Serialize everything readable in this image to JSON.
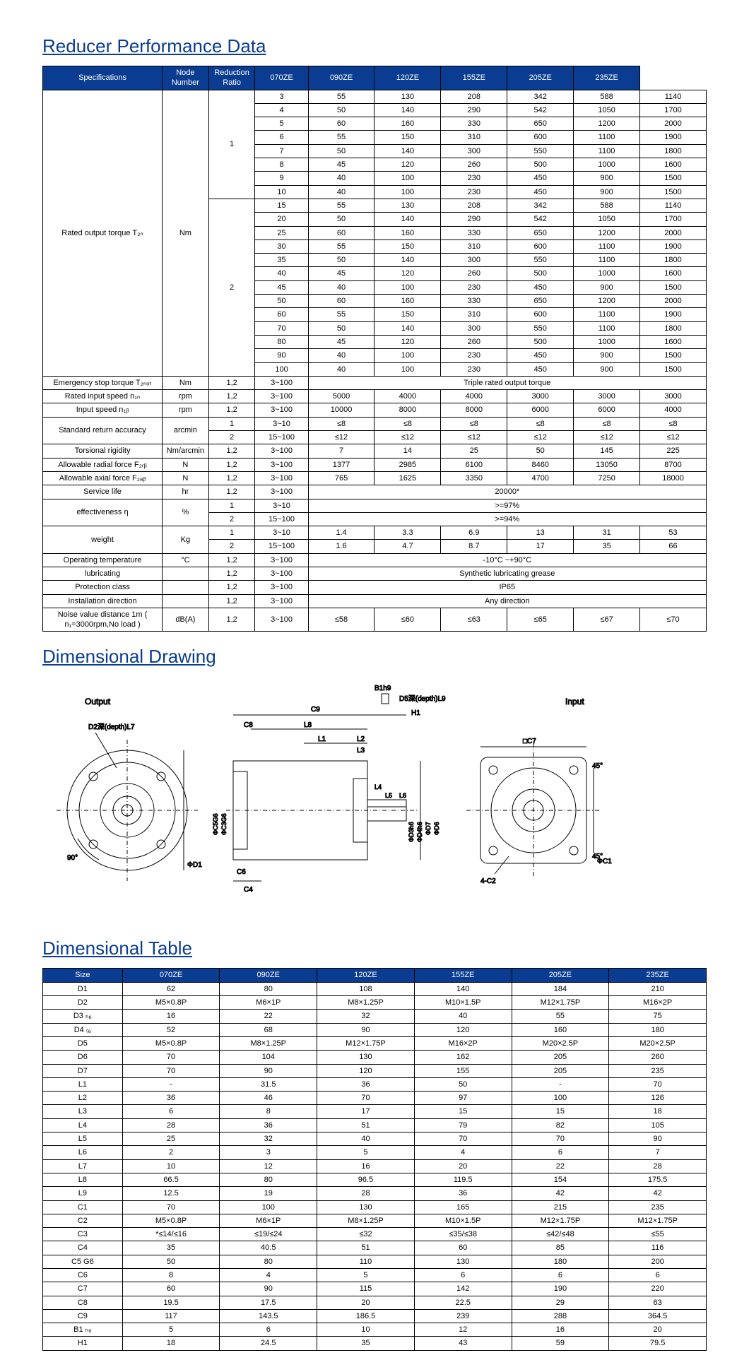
{
  "sections": {
    "perf_title": "Reducer Performance Data",
    "drawing_title": "Dimensional Drawing",
    "dim_title": "Dimensional Table"
  },
  "perf_table": {
    "headers": {
      "spec": "Specifications",
      "node": "Node Number",
      "ratio": "Reduction Ratio",
      "models": [
        "070ZE",
        "090ZE",
        "120ZE",
        "155ZE",
        "205ZE",
        "235ZE"
      ]
    },
    "torque_label": "Rated output torque T₂ₙ",
    "torque_unit": "Nm",
    "torque_stage1": "1",
    "torque_stage2": "2",
    "torque_rows_1": [
      [
        "3",
        "55",
        "130",
        "208",
        "342",
        "588",
        "1140"
      ],
      [
        "4",
        "50",
        "140",
        "290",
        "542",
        "1050",
        "1700"
      ],
      [
        "5",
        "60",
        "160",
        "330",
        "650",
        "1200",
        "2000"
      ],
      [
        "6",
        "55",
        "150",
        "310",
        "600",
        "1100",
        "1900"
      ],
      [
        "7",
        "50",
        "140",
        "300",
        "550",
        "1100",
        "1800"
      ],
      [
        "8",
        "45",
        "120",
        "260",
        "500",
        "1000",
        "1600"
      ],
      [
        "9",
        "40",
        "100",
        "230",
        "450",
        "900",
        "1500"
      ],
      [
        "10",
        "40",
        "100",
        "230",
        "450",
        "900",
        "1500"
      ]
    ],
    "torque_rows_2": [
      [
        "15",
        "55",
        "130",
        "208",
        "342",
        "588",
        "1140"
      ],
      [
        "20",
        "50",
        "140",
        "290",
        "542",
        "1050",
        "1700"
      ],
      [
        "25",
        "60",
        "160",
        "330",
        "650",
        "1200",
        "2000"
      ],
      [
        "30",
        "55",
        "150",
        "310",
        "600",
        "1100",
        "1900"
      ],
      [
        "35",
        "50",
        "140",
        "300",
        "550",
        "1100",
        "1800"
      ],
      [
        "40",
        "45",
        "120",
        "260",
        "500",
        "1000",
        "1600"
      ],
      [
        "45",
        "40",
        "100",
        "230",
        "450",
        "900",
        "1500"
      ],
      [
        "50",
        "60",
        "160",
        "330",
        "650",
        "1200",
        "2000"
      ],
      [
        "60",
        "55",
        "150",
        "310",
        "600",
        "1100",
        "1900"
      ],
      [
        "70",
        "50",
        "140",
        "300",
        "550",
        "1100",
        "1800"
      ],
      [
        "80",
        "45",
        "120",
        "260",
        "500",
        "1000",
        "1600"
      ],
      [
        "90",
        "40",
        "100",
        "230",
        "450",
        "900",
        "1500"
      ],
      [
        "100",
        "40",
        "100",
        "230",
        "450",
        "900",
        "1500"
      ]
    ],
    "other_rows": [
      {
        "spec": "Emergency stop torque T₂ₙₒₜ",
        "unit": "Nm",
        "node": "1,2",
        "ratio": "3~100",
        "span": "Triple rated output torque"
      },
      {
        "spec": "Rated input speed n₁ₙ",
        "unit": "rpm",
        "node": "1,2",
        "ratio": "3~100",
        "vals": [
          "5000",
          "4000",
          "4000",
          "3000",
          "3000",
          "3000"
        ]
      },
      {
        "spec": "Input speed n₁ᵦ",
        "unit": "rpm",
        "node": "1,2",
        "ratio": "3~100",
        "vals": [
          "10000",
          "8000",
          "8000",
          "6000",
          "6000",
          "4000"
        ]
      },
      {
        "spec": "Standard return accuracy",
        "unit": "arcmin",
        "rowspan": 2,
        "sub": [
          {
            "node": "1",
            "ratio": "3~10",
            "vals": [
              "≤8",
              "≤8",
              "≤8",
              "≤8",
              "≤8",
              "≤8"
            ]
          },
          {
            "node": "2",
            "ratio": "15~100",
            "vals": [
              "≤12",
              "≤12",
              "≤12",
              "≤12",
              "≤12",
              "≤12"
            ]
          }
        ]
      },
      {
        "spec": "Torsional rigidity",
        "unit": "Nm/arcmin",
        "node": "1,2",
        "ratio": "3~100",
        "vals": [
          "7",
          "14",
          "25",
          "50",
          "145",
          "225"
        ]
      },
      {
        "spec": "Allowable radial force F₂ᵣᵦ",
        "unit": "N",
        "node": "1,2",
        "ratio": "3~100",
        "vals": [
          "1377",
          "2985",
          "6100",
          "8460",
          "13050",
          "8700"
        ]
      },
      {
        "spec": "Allowable axial force F₂ₐᵦ",
        "unit": "N",
        "node": "1,2",
        "ratio": "3~100",
        "vals": [
          "765",
          "1625",
          "3350",
          "4700",
          "7250",
          "18000"
        ]
      },
      {
        "spec": "Service life",
        "unit": "hr",
        "node": "1,2",
        "ratio": "3~100",
        "span": "20000*"
      },
      {
        "spec": "effectiveness η",
        "unit": "%",
        "rowspan": 2,
        "sub": [
          {
            "node": "1",
            "ratio": "3~10",
            "span": ">=97%"
          },
          {
            "node": "2",
            "ratio": "15~100",
            "span": ">=94%"
          }
        ]
      },
      {
        "spec": "weight",
        "unit": "Kg",
        "rowspan": 2,
        "sub": [
          {
            "node": "1",
            "ratio": "3~10",
            "vals": [
              "1.4",
              "3.3",
              "6.9",
              "13",
              "31",
              "53"
            ]
          },
          {
            "node": "2",
            "ratio": "15~100",
            "vals": [
              "1.6",
              "4.7",
              "8.7",
              "17",
              "35",
              "66"
            ]
          }
        ]
      },
      {
        "spec": "Operating temperature",
        "unit": "°C",
        "node": "1,2",
        "ratio": "3~100",
        "span": "-10°C ~+90°C"
      },
      {
        "spec": "lubricating",
        "unit": "",
        "node": "1,2",
        "ratio": "3~100",
        "span": "Synthetic lubricating grease"
      },
      {
        "spec": "Protection class",
        "unit": "",
        "node": "1,2",
        "ratio": "3~100",
        "span": "IP65"
      },
      {
        "spec": "Installation direction",
        "unit": "",
        "node": "1,2",
        "ratio": "3~100",
        "span": "Any direction"
      },
      {
        "spec": "Noise value distance 1m ( n₁=3000rpm,No load )",
        "unit": "dB(A)",
        "node": "1,2",
        "ratio": "3~100",
        "vals": [
          "≤58",
          "≤60",
          "≤63",
          "≤65",
          "≤67",
          "≤70"
        ]
      }
    ]
  },
  "drawing": {
    "output_label": "Output",
    "input_label": "Input",
    "dim_labels": [
      "ΦD1",
      "ΦC1",
      "D2深(depth)L7",
      "90°",
      "C6",
      "C4",
      "ΦC5G6",
      "ΦC3G6",
      "C8",
      "L8",
      "L1",
      "L2",
      "L3",
      "L4",
      "L5",
      "L6",
      "C9",
      "B1h9",
      "H1",
      "D5深(depth)L9",
      "ΦD3h6",
      "ΦD4h6",
      "ΦD7",
      "ΦD6",
      "□C7",
      "4-C2",
      "45°",
      "45°"
    ]
  },
  "dim_table": {
    "headers": [
      "Size",
      "070ZE",
      "090ZE",
      "120ZE",
      "155ZE",
      "205ZE",
      "235ZE"
    ],
    "rows": [
      [
        "D1",
        "62",
        "80",
        "108",
        "140",
        "184",
        "210"
      ],
      [
        "D2",
        "M5×0.8P",
        "M6×1P",
        "M8×1.25P",
        "M10×1.5P",
        "M12×1.75P",
        "M16×2P"
      ],
      [
        "D3 ₕ₆",
        "16",
        "22",
        "32",
        "40",
        "55",
        "75"
      ],
      [
        "D4 ₍₆",
        "52",
        "68",
        "90",
        "120",
        "160",
        "180"
      ],
      [
        "D5",
        "M5×0.8P",
        "M8×1.25P",
        "M12×1.75P",
        "M16×2P",
        "M20×2.5P",
        "M20×2.5P"
      ],
      [
        "D6",
        "70",
        "104",
        "130",
        "162",
        "205",
        "260"
      ],
      [
        "D7",
        "70",
        "90",
        "120",
        "155",
        "205",
        "235"
      ],
      [
        "L1",
        "-",
        "31.5",
        "36",
        "50",
        "-",
        "70"
      ],
      [
        "L2",
        "36",
        "46",
        "70",
        "97",
        "100",
        "126"
      ],
      [
        "L3",
        "6",
        "8",
        "17",
        "15",
        "15",
        "18"
      ],
      [
        "L4",
        "28",
        "36",
        "51",
        "79",
        "82",
        "105"
      ],
      [
        "L5",
        "25",
        "32",
        "40",
        "70",
        "70",
        "90"
      ],
      [
        "L6",
        "2",
        "3",
        "5",
        "4",
        "6",
        "7"
      ],
      [
        "L7",
        "10",
        "12",
        "16",
        "20",
        "22",
        "28"
      ],
      [
        "L8",
        "66.5",
        "80",
        "96.5",
        "119.5",
        "154",
        "175.5"
      ],
      [
        "L9",
        "12.5",
        "19",
        "28",
        "36",
        "42",
        "42"
      ],
      [
        "C1",
        "70",
        "100",
        "130",
        "165",
        "215",
        "235"
      ],
      [
        "C2",
        "M5×0.8P",
        "M6×1P",
        "M8×1.25P",
        "M10×1.5P",
        "M12×1.75P",
        "M12×1.75P"
      ],
      [
        "C3",
        "*≤14/≤16",
        "≤19/≤24",
        "≤32",
        "≤35/≤38",
        "≤42/≤48",
        "≤55"
      ],
      [
        "C4",
        "35",
        "40.5",
        "51",
        "60",
        "85",
        "116"
      ],
      [
        "C5 G6",
        "50",
        "80",
        "110",
        "130",
        "180",
        "200"
      ],
      [
        "C6",
        "8",
        "4",
        "5",
        "6",
        "6",
        "6"
      ],
      [
        "C7",
        "60",
        "90",
        "115",
        "142",
        "190",
        "220"
      ],
      [
        "C8",
        "19.5",
        "17.5",
        "20",
        "22.5",
        "29",
        "63"
      ],
      [
        "C9",
        "117",
        "143.5",
        "186.5",
        "239",
        "288",
        "364.5"
      ],
      [
        "B1 ₕ₉",
        "5",
        "6",
        "10",
        "12",
        "16",
        "20"
      ],
      [
        "H1",
        "18",
        "24.5",
        "35",
        "43",
        "59",
        "79.5"
      ]
    ]
  },
  "colors": {
    "header_bg": "#0a3d91",
    "header_fg": "#ffffff",
    "title_color": "#0a3d91",
    "border": "#000000"
  }
}
